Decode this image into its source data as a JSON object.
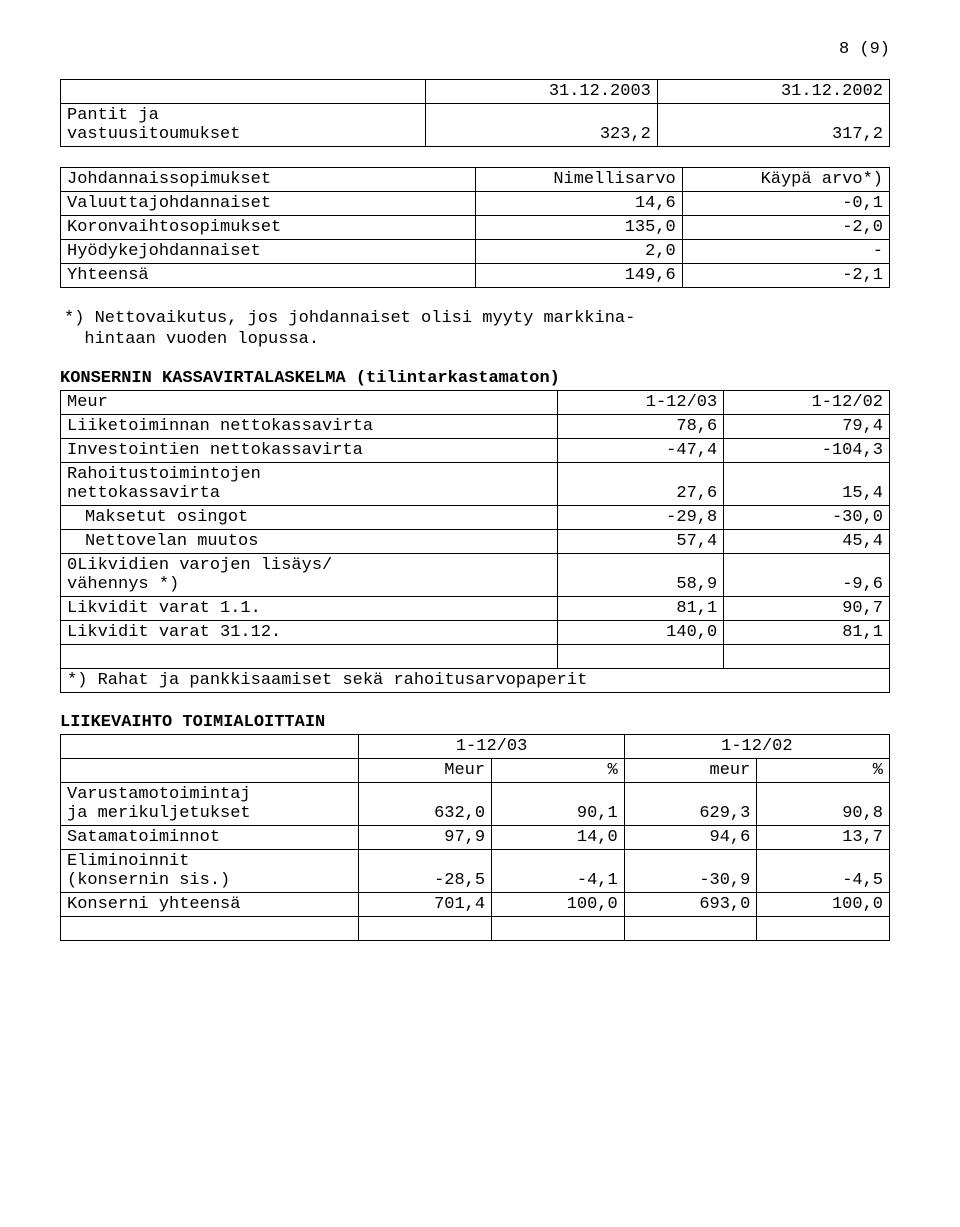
{
  "page_number": "8 (9)",
  "table1": {
    "headers": [
      "31.12.2003",
      "31.12.2002"
    ],
    "row_label_1": "Pantit ja",
    "row_label_2": "vastuusitoumukset",
    "v1": "323,2",
    "v2": "317,2"
  },
  "table2": {
    "h1": "Johdannaissopimukset",
    "h2": "Nimellisarvo",
    "h3": "Käypä arvo*)",
    "rows": [
      {
        "l": "Valuuttajohdannaiset",
        "a": "14,6",
        "b": "-0,1"
      },
      {
        "l": "Koronvaihtosopimukset",
        "a": "135,0",
        "b": "-2,0"
      },
      {
        "l": "Hyödykejohdannaiset",
        "a": "2,0",
        "b": "-"
      },
      {
        "l": "Yhteensä",
        "a": "149,6",
        "b": "-2,1"
      }
    ]
  },
  "footnote1_a": "*) Nettovaikutus, jos johdannaiset olisi myyty markkina-",
  "footnote1_b": "hintaan vuoden lopussa.",
  "section1": {
    "title": "KONSERNIN KASSAVIRTALASKELMA (tilintarkastamaton)",
    "h1": "Meur",
    "h2": "1-12/03",
    "h3": "1-12/02",
    "rows": [
      {
        "l": "Liiketoiminnan nettokassavirta",
        "a": "78,6",
        "b": "79,4",
        "indent": false
      },
      {
        "l": "Investointien nettokassavirta",
        "a": "-47,4",
        "b": "-104,3",
        "indent": false
      }
    ],
    "rahoitus_l1": "Rahoitustoimintojen",
    "rahoitus_l2": "nettokassavirta",
    "rahoitus_a": "27,6",
    "rahoitus_b": "15,4",
    "sub_rows": [
      {
        "l": "Maksetut osingot",
        "a": "-29,8",
        "b": "-30,0"
      },
      {
        "l": "Nettovelan muutos",
        "a": "57,4",
        "b": "45,4"
      }
    ],
    "likv_l1": "0Likvidien varojen lisäys/",
    "likv_l2": "vähennys *)",
    "likv_a": "58,9",
    "likv_b": "-9,6",
    "end_rows": [
      {
        "l": "Likvidit varat  1.1.",
        "a": "81,1",
        "b": "90,7"
      },
      {
        "l": "Likvidit varat 31.12.",
        "a": "140,0",
        "b": "81,1"
      }
    ],
    "footnote": "*) Rahat ja pankkisaamiset sekä rahoitusarvopaperit"
  },
  "section2": {
    "title": "LIIKEVAIHTO TOIMIALOITTAIN",
    "h_p1": "1-12/03",
    "h_p2": "1-12/02",
    "h_meur": "Meur",
    "h_pct": "%",
    "h_meur2": "meur",
    "h_pct2": "%",
    "var_l1": "Varustamotoimintaj",
    "var_l2": "ja merikuljetukset",
    "var": [
      "632,0",
      "90,1",
      "629,3",
      "90,8"
    ],
    "sat_l": "Satamatoiminnot",
    "sat": [
      "97,9",
      "14,0",
      "94,6",
      "13,7"
    ],
    "elim_l1": "Eliminoinnit",
    "elim_l2": "(konsernin sis.)",
    "elim": [
      "-28,5",
      "-4,1",
      "-30,9",
      "-4,5"
    ],
    "kon_l": "Konserni yhteensä",
    "kon": [
      "701,4",
      "100,0",
      "693,0",
      "100,0"
    ]
  }
}
